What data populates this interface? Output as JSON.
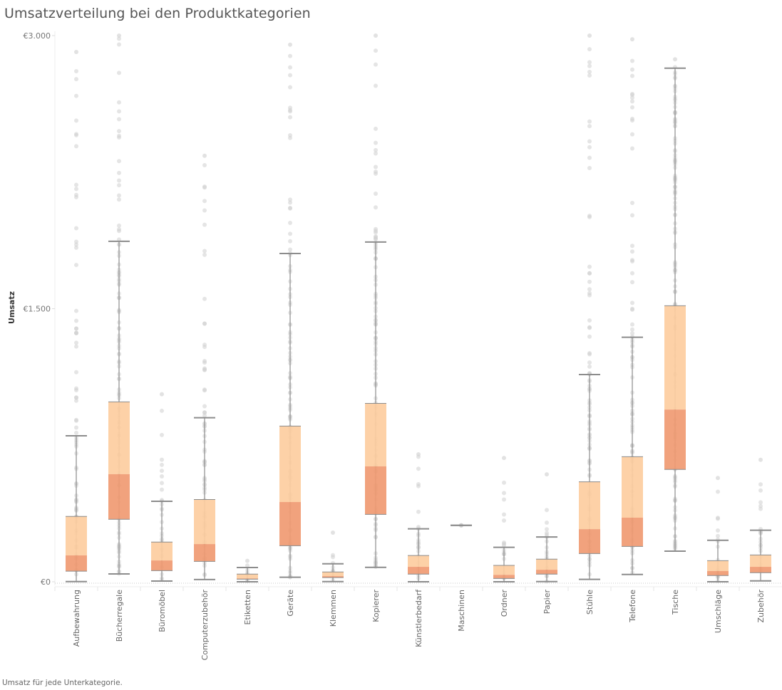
{
  "title": "Umsatzverteilung bei den Produktkategorien",
  "caption": "Umsatz für jede Unterkategorie.",
  "colors": {
    "upper_box": "#fdcd9f",
    "lower_box": "#f09a72",
    "whisker": "#8c8c8c",
    "point": "#cfcfcf",
    "zero_line": "#c8c8c8",
    "gridline": "#eeeeee"
  },
  "chart_data": {
    "type": "boxplot",
    "title": "Umsatzverteilung bei den Produktkategorien",
    "xlabel": "",
    "ylabel": "Umsatz",
    "ylim": [
      0,
      3000
    ],
    "y_ticks": [
      {
        "value": 0,
        "label": "€0"
      },
      {
        "value": 1500,
        "label": "€1.500"
      },
      {
        "value": 3000,
        "label": "€3.000"
      }
    ],
    "grid": false,
    "categories": [
      "Aufbewahrung",
      "Bücherregale",
      "Büromöbel",
      "Computerzubehör",
      "Etiketten",
      "Geräte",
      "Klemmen",
      "Kopierer",
      "Künstlerbedarf",
      "Maschinen",
      "Ordner",
      "Papier",
      "Stühle",
      "Telefone",
      "Tische",
      "Umschläge",
      "Zubehör"
    ],
    "boxes": [
      {
        "category": "Aufbewahrung",
        "lower_whisker": 1,
        "q1": 58,
        "median": 145,
        "q3": 359,
        "upper_whisker": 802,
        "max_outlier": 2910
      },
      {
        "category": "Bücherregale",
        "lower_whisker": 43,
        "q1": 343,
        "median": 591,
        "q3": 988,
        "upper_whisker": 1870,
        "max_outlier": 3000
      },
      {
        "category": "Büromöbel",
        "lower_whisker": 4,
        "q1": 61,
        "median": 117,
        "q3": 218,
        "upper_whisker": 442,
        "max_outlier": 1030
      },
      {
        "category": "Computerzubehör",
        "lower_whisker": 12,
        "q1": 112,
        "median": 207,
        "q3": 452,
        "upper_whisker": 901,
        "max_outlier": 2340
      },
      {
        "category": "Etiketten",
        "lower_whisker": 0,
        "q1": 14,
        "median": 18,
        "q3": 42,
        "upper_whisker": 78,
        "max_outlier": 115
      },
      {
        "category": "Geräte",
        "lower_whisker": 25,
        "q1": 198,
        "median": 438,
        "q3": 855,
        "upper_whisker": 1803,
        "max_outlier": 2950
      },
      {
        "category": "Klemmen",
        "lower_whisker": 1,
        "q1": 23,
        "median": 31,
        "q3": 54,
        "upper_whisker": 99,
        "max_outlier": 270
      },
      {
        "category": "Kopierer",
        "lower_whisker": 79,
        "q1": 370,
        "median": 634,
        "q3": 980,
        "upper_whisker": 1866,
        "max_outlier": 3000
      },
      {
        "category": "Künstlerbedarf",
        "lower_whisker": 0,
        "q1": 42,
        "median": 82,
        "q3": 144,
        "upper_whisker": 291,
        "max_outlier": 700
      },
      {
        "category": "Maschinen",
        "lower_whisker": 310,
        "q1": 310,
        "median": 310,
        "q3": 310,
        "upper_whisker": 310,
        "max_outlier": 310
      },
      {
        "category": "Ordner",
        "lower_whisker": 0,
        "q1": 18,
        "median": 38,
        "q3": 90,
        "upper_whisker": 189,
        "max_outlier": 680
      },
      {
        "category": "Papier",
        "lower_whisker": 1,
        "q1": 42,
        "median": 66,
        "q3": 124,
        "upper_whisker": 246,
        "max_outlier": 590
      },
      {
        "category": "Stühle",
        "lower_whisker": 13,
        "q1": 155,
        "median": 289,
        "q3": 549,
        "upper_whisker": 1138,
        "max_outlier": 3000
      },
      {
        "category": "Telefone",
        "lower_whisker": 40,
        "q1": 194,
        "median": 352,
        "q3": 687,
        "upper_whisker": 1343,
        "max_outlier": 2980
      },
      {
        "category": "Tische",
        "lower_whisker": 168,
        "q1": 617,
        "median": 946,
        "q3": 1516,
        "upper_whisker": 2821,
        "max_outlier": 2870
      },
      {
        "category": "Umschläge",
        "lower_whisker": 0,
        "q1": 34,
        "median": 59,
        "q3": 116,
        "upper_whisker": 228,
        "max_outlier": 570
      },
      {
        "category": "Zubehör",
        "lower_whisker": 5,
        "q1": 50,
        "median": 82,
        "q3": 147,
        "upper_whisker": 283,
        "max_outlier": 670
      }
    ]
  }
}
